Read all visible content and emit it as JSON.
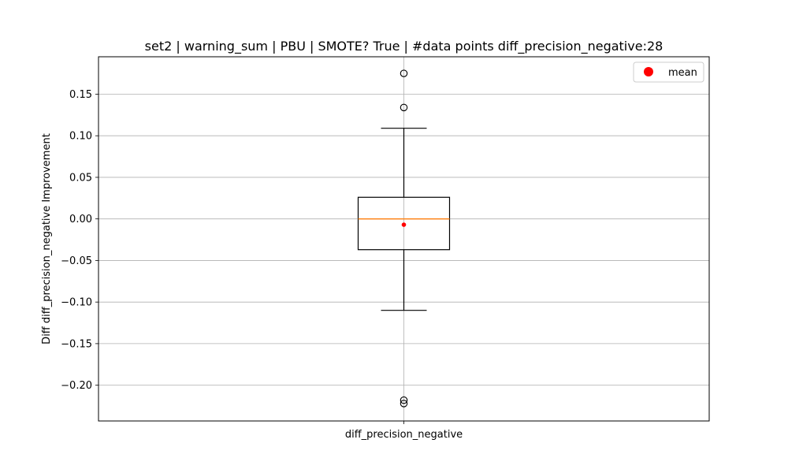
{
  "chart_data": {
    "type": "box",
    "title": "set2 | warning_sum | PBU | SMOTE? True | #data points diff_precision_negative:28",
    "xlabel": "",
    "ylabel": "Diff diff_precision_negative Improvement",
    "categories": [
      "diff_precision_negative"
    ],
    "n_points": 28,
    "ylim": [
      -0.243,
      0.195
    ],
    "y_ticks": [
      -0.2,
      -0.15,
      -0.1,
      -0.05,
      0.0,
      0.05,
      0.1,
      0.15
    ],
    "y_tick_labels": [
      "−0.20",
      "−0.15",
      "−0.10",
      "−0.05",
      "0.00",
      "0.05",
      "0.10",
      "0.15"
    ],
    "grid": true,
    "legend": {
      "placement": "top-right",
      "entries": [
        {
          "label": "mean",
          "color": "#ff0000"
        }
      ]
    },
    "boxes": [
      {
        "category": "diff_precision_negative",
        "whisker_low": -0.11,
        "q1": -0.037,
        "median": 0.0,
        "q3": 0.026,
        "whisker_high": 0.109,
        "mean": -0.007,
        "outliers": [
          0.175,
          0.134,
          -0.218,
          -0.222
        ]
      }
    ],
    "colors": {
      "box": "#000000",
      "median": "#ff7f0e",
      "mean": "#ff0000",
      "grid": "#b0b0b0",
      "flier": "#000000"
    }
  }
}
